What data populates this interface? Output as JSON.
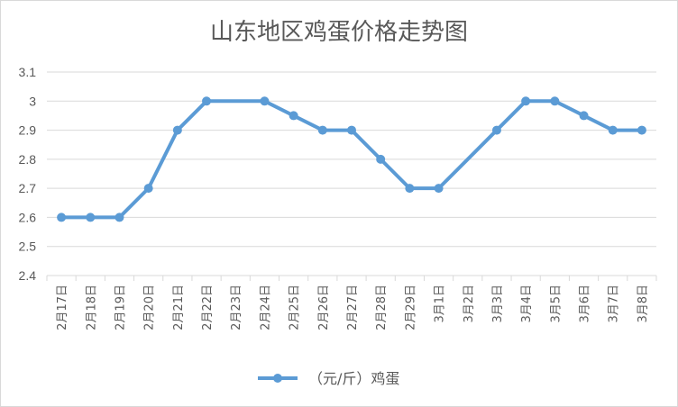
{
  "chart_data": {
    "type": "line",
    "title": "山东地区鸡蛋价格走势图",
    "categories": [
      "2月17日",
      "2月18日",
      "2月19日",
      "2月20日",
      "2月21日",
      "2月22日",
      "2月23日",
      "2月24日",
      "2月25日",
      "2月26日",
      "2月27日",
      "2月28日",
      "2月29日",
      "3月1日",
      "3月2日",
      "3月3日",
      "3月4日",
      "3月5日",
      "3月6日",
      "3月7日",
      "3月8日"
    ],
    "series": [
      {
        "name": "（元/斤）鸡蛋",
        "values": [
          2.6,
          2.6,
          2.6,
          2.7,
          2.9,
          3.0,
          null,
          3.0,
          2.95,
          2.9,
          2.9,
          2.8,
          2.7,
          2.7,
          null,
          2.9,
          3.0,
          3.0,
          2.95,
          2.9,
          2.9
        ],
        "color": "#5b9bd5"
      }
    ],
    "ylim": [
      2.4,
      3.1
    ],
    "yticks": [
      "2.4",
      "2.5",
      "2.6",
      "2.7",
      "2.8",
      "2.9",
      "3",
      "3.1"
    ],
    "grid": true,
    "legend": "bottom"
  }
}
